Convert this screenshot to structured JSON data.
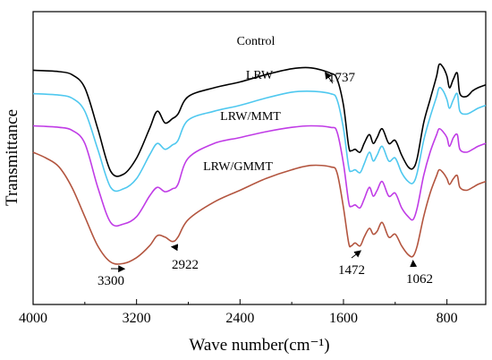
{
  "chart_data": {
    "type": "line",
    "xlabel": "Wave number(cm⁻¹)",
    "ylabel": "Transmittance",
    "xlim": [
      4000,
      500
    ],
    "x_reversed": true,
    "xticks": [
      {
        "value": 4000,
        "label": "4000"
      },
      {
        "value": 3200,
        "label": "3200"
      },
      {
        "value": 2400,
        "label": "2400"
      },
      {
        "value": 1600,
        "label": "1600"
      },
      {
        "value": 800,
        "label": "800"
      }
    ],
    "y_ticks_shown": false,
    "grid": false,
    "legend": "none (series labelled directly on curves)",
    "series": [
      {
        "name": "Control",
        "color": "#000000",
        "points": [
          [
            4000,
            0.8
          ],
          [
            3900,
            0.798
          ],
          [
            3800,
            0.795
          ],
          [
            3700,
            0.785
          ],
          [
            3600,
            0.74
          ],
          [
            3500,
            0.6
          ],
          [
            3400,
            0.455
          ],
          [
            3300,
            0.445
          ],
          [
            3200,
            0.5
          ],
          [
            3100,
            0.6
          ],
          [
            3040,
            0.66
          ],
          [
            2980,
            0.62
          ],
          [
            2922,
            0.635
          ],
          [
            2880,
            0.65
          ],
          [
            2800,
            0.71
          ],
          [
            2600,
            0.74
          ],
          [
            2400,
            0.76
          ],
          [
            2200,
            0.785
          ],
          [
            2000,
            0.805
          ],
          [
            1850,
            0.808
          ],
          [
            1700,
            0.79
          ],
          [
            1650,
            0.77
          ],
          [
            1600,
            0.68
          ],
          [
            1560,
            0.54
          ],
          [
            1540,
            0.525
          ],
          [
            1510,
            0.53
          ],
          [
            1472,
            0.52
          ],
          [
            1440,
            0.55
          ],
          [
            1400,
            0.58
          ],
          [
            1370,
            0.55
          ],
          [
            1340,
            0.57
          ],
          [
            1300,
            0.6
          ],
          [
            1250,
            0.55
          ],
          [
            1200,
            0.56
          ],
          [
            1150,
            0.51
          ],
          [
            1100,
            0.47
          ],
          [
            1062,
            0.465
          ],
          [
            1030,
            0.5
          ],
          [
            980,
            0.62
          ],
          [
            930,
            0.7
          ],
          [
            880,
            0.78
          ],
          [
            860,
            0.82
          ],
          [
            830,
            0.81
          ],
          [
            800,
            0.78
          ],
          [
            780,
            0.74
          ],
          [
            750,
            0.77
          ],
          [
            720,
            0.79
          ],
          [
            700,
            0.72
          ],
          [
            650,
            0.71
          ],
          [
            600,
            0.73
          ],
          [
            560,
            0.74
          ],
          [
            500,
            0.75
          ]
        ]
      },
      {
        "name": "LRW",
        "color": "#4fc8ef",
        "points": [
          [
            4000,
            0.72
          ],
          [
            3900,
            0.718
          ],
          [
            3800,
            0.715
          ],
          [
            3700,
            0.705
          ],
          [
            3600,
            0.66
          ],
          [
            3500,
            0.53
          ],
          [
            3400,
            0.4
          ],
          [
            3300,
            0.395
          ],
          [
            3200,
            0.43
          ],
          [
            3100,
            0.51
          ],
          [
            3040,
            0.55
          ],
          [
            2980,
            0.53
          ],
          [
            2922,
            0.545
          ],
          [
            2880,
            0.56
          ],
          [
            2800,
            0.63
          ],
          [
            2600,
            0.66
          ],
          [
            2400,
            0.68
          ],
          [
            2200,
            0.705
          ],
          [
            2000,
            0.725
          ],
          [
            1850,
            0.728
          ],
          [
            1700,
            0.72
          ],
          [
            1650,
            0.7
          ],
          [
            1600,
            0.6
          ],
          [
            1560,
            0.47
          ],
          [
            1540,
            0.455
          ],
          [
            1510,
            0.46
          ],
          [
            1472,
            0.45
          ],
          [
            1440,
            0.48
          ],
          [
            1400,
            0.52
          ],
          [
            1370,
            0.49
          ],
          [
            1340,
            0.51
          ],
          [
            1300,
            0.54
          ],
          [
            1250,
            0.49
          ],
          [
            1200,
            0.5
          ],
          [
            1150,
            0.45
          ],
          [
            1100,
            0.42
          ],
          [
            1062,
            0.415
          ],
          [
            1030,
            0.45
          ],
          [
            980,
            0.56
          ],
          [
            930,
            0.64
          ],
          [
            880,
            0.71
          ],
          [
            860,
            0.74
          ],
          [
            830,
            0.73
          ],
          [
            800,
            0.7
          ],
          [
            780,
            0.67
          ],
          [
            750,
            0.7
          ],
          [
            720,
            0.72
          ],
          [
            700,
            0.66
          ],
          [
            650,
            0.65
          ],
          [
            600,
            0.66
          ],
          [
            560,
            0.67
          ],
          [
            500,
            0.68
          ]
        ]
      },
      {
        "name": "LRW/MMT",
        "color": "#c03ce6",
        "points": [
          [
            4000,
            0.61
          ],
          [
            3900,
            0.608
          ],
          [
            3800,
            0.605
          ],
          [
            3700,
            0.595
          ],
          [
            3600,
            0.55
          ],
          [
            3500,
            0.4
          ],
          [
            3400,
            0.28
          ],
          [
            3300,
            0.275
          ],
          [
            3200,
            0.3
          ],
          [
            3100,
            0.37
          ],
          [
            3040,
            0.4
          ],
          [
            2980,
            0.385
          ],
          [
            2922,
            0.395
          ],
          [
            2880,
            0.41
          ],
          [
            2800,
            0.5
          ],
          [
            2600,
            0.55
          ],
          [
            2400,
            0.57
          ],
          [
            2200,
            0.59
          ],
          [
            2000,
            0.605
          ],
          [
            1850,
            0.61
          ],
          [
            1700,
            0.605
          ],
          [
            1650,
            0.59
          ],
          [
            1600,
            0.48
          ],
          [
            1560,
            0.35
          ],
          [
            1540,
            0.335
          ],
          [
            1510,
            0.34
          ],
          [
            1472,
            0.33
          ],
          [
            1440,
            0.36
          ],
          [
            1400,
            0.4
          ],
          [
            1370,
            0.37
          ],
          [
            1340,
            0.39
          ],
          [
            1300,
            0.42
          ],
          [
            1250,
            0.37
          ],
          [
            1200,
            0.38
          ],
          [
            1150,
            0.33
          ],
          [
            1100,
            0.3
          ],
          [
            1062,
            0.29
          ],
          [
            1030,
            0.33
          ],
          [
            980,
            0.44
          ],
          [
            930,
            0.52
          ],
          [
            880,
            0.58
          ],
          [
            860,
            0.6
          ],
          [
            830,
            0.59
          ],
          [
            800,
            0.57
          ],
          [
            780,
            0.54
          ],
          [
            750,
            0.57
          ],
          [
            720,
            0.58
          ],
          [
            700,
            0.53
          ],
          [
            650,
            0.52
          ],
          [
            600,
            0.53
          ],
          [
            560,
            0.54
          ],
          [
            500,
            0.55
          ]
        ]
      },
      {
        "name": "LRW/GMMT",
        "color": "#b3553f",
        "points": [
          [
            4000,
            0.52
          ],
          [
            3900,
            0.5
          ],
          [
            3800,
            0.47
          ],
          [
            3700,
            0.4
          ],
          [
            3600,
            0.3
          ],
          [
            3500,
            0.2
          ],
          [
            3400,
            0.145
          ],
          [
            3300,
            0.14
          ],
          [
            3200,
            0.16
          ],
          [
            3100,
            0.2
          ],
          [
            3040,
            0.235
          ],
          [
            2980,
            0.23
          ],
          [
            2922,
            0.215
          ],
          [
            2880,
            0.23
          ],
          [
            2800,
            0.29
          ],
          [
            2600,
            0.35
          ],
          [
            2400,
            0.39
          ],
          [
            2200,
            0.43
          ],
          [
            2000,
            0.46
          ],
          [
            1850,
            0.475
          ],
          [
            1700,
            0.47
          ],
          [
            1650,
            0.45
          ],
          [
            1600,
            0.33
          ],
          [
            1560,
            0.21
          ],
          [
            1540,
            0.2
          ],
          [
            1510,
            0.21
          ],
          [
            1472,
            0.2
          ],
          [
            1440,
            0.23
          ],
          [
            1400,
            0.26
          ],
          [
            1370,
            0.24
          ],
          [
            1340,
            0.25
          ],
          [
            1300,
            0.28
          ],
          [
            1250,
            0.23
          ],
          [
            1200,
            0.24
          ],
          [
            1150,
            0.2
          ],
          [
            1100,
            0.17
          ],
          [
            1062,
            0.165
          ],
          [
            1030,
            0.2
          ],
          [
            980,
            0.3
          ],
          [
            930,
            0.38
          ],
          [
            880,
            0.44
          ],
          [
            860,
            0.46
          ],
          [
            830,
            0.45
          ],
          [
            800,
            0.43
          ],
          [
            780,
            0.41
          ],
          [
            750,
            0.43
          ],
          [
            720,
            0.44
          ],
          [
            700,
            0.4
          ],
          [
            650,
            0.39
          ],
          [
            600,
            0.4
          ],
          [
            560,
            0.41
          ],
          [
            500,
            0.42
          ]
        ]
      }
    ],
    "annotations": [
      {
        "label": "1737",
        "x": 1737,
        "y": 0.79,
        "series": "Control"
      },
      {
        "label": "3300",
        "x": 3300,
        "y": 0.14,
        "series": "LRW/GMMT"
      },
      {
        "label": "2922",
        "x": 2922,
        "y": 0.215,
        "series": "LRW/GMMT"
      },
      {
        "label": "1472",
        "x": 1472,
        "y": 0.2,
        "series": "LRW/GMMT"
      },
      {
        "label": "1062",
        "x": 1062,
        "y": 0.165,
        "series": "LRW/GMMT"
      }
    ]
  }
}
